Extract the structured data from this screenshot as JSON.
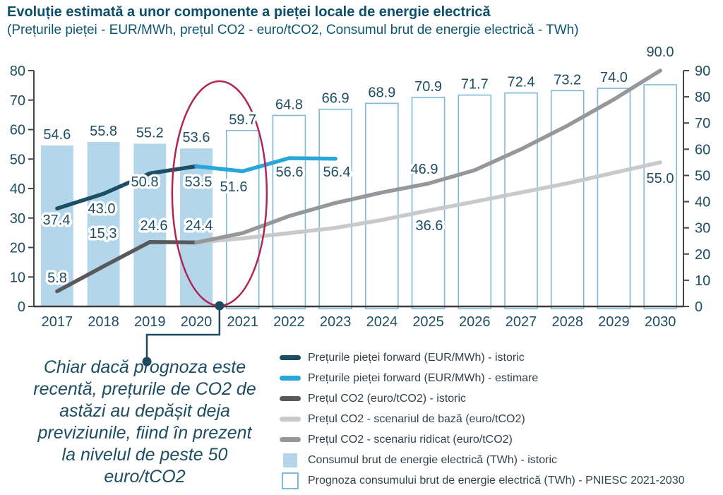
{
  "header": {
    "title": "Evoluție estimată a unor componente a pieței locale de energie electrică",
    "subtitle": "(Prețurile pieței - EUR/MWh, prețul CO2 - euro/tCO2, Consumul brut de energie electrică - TWh)"
  },
  "colors": {
    "navy": "#1b4d64",
    "bright_blue": "#29a7db",
    "dark_gray": "#58595b",
    "light_gray": "#c8c9cb",
    "mid_gray": "#96979a",
    "bar_fill_historic": "#b3d6ea",
    "bar_stroke_forecast": "#7fb9d8",
    "axis": "#45464a",
    "x_axis": "#3c3c3e",
    "text_teal": "#1e4e63",
    "ellipse_red": "#b02552",
    "connector": "#1d4a5f"
  },
  "chart_data": {
    "type": "bar+line combo",
    "categories": [
      "2017",
      "2018",
      "2019",
      "2020",
      "2021",
      "2022",
      "2023",
      "2024",
      "2025",
      "2026",
      "2027",
      "2028",
      "2029",
      "2030"
    ],
    "left_axis": {
      "min": 0,
      "max": 80,
      "step": 10
    },
    "right_axis": {
      "min": 0,
      "max": 90,
      "step": 10
    },
    "grid": false,
    "legend_position": "bottom-right",
    "bars": {
      "axis": "left",
      "historic_count": 4,
      "values": [
        54.6,
        55.8,
        55.2,
        53.6,
        59.7,
        64.8,
        66.9,
        68.9,
        70.9,
        71.7,
        72.4,
        73.2,
        74.0,
        75.2
      ],
      "value_labels": [
        "54.6",
        "55.8",
        "55.2",
        "53.6",
        "59.7",
        "64.8",
        "66.9",
        "68.9",
        "70.9",
        "71.7",
        "72.4",
        "73.2",
        "74.0",
        ""
      ]
    },
    "lines": [
      {
        "name": "Prețurile pieței forward (EUR/MWh) - istoric",
        "color_key": "navy",
        "width": 5.5,
        "axis": "right",
        "points": [
          {
            "year": "2017",
            "value": 37.4,
            "label": "37.4",
            "label_xy": [
              80,
              318
            ]
          },
          {
            "year": "2018",
            "value": 43.0,
            "label": "43.0",
            "label_xy": [
              144,
              302
            ]
          },
          {
            "year": "2019",
            "value": 50.8,
            "label": "50.8",
            "label_xy": [
              205,
              264
            ]
          },
          {
            "year": "2020",
            "value": 53.5,
            "label": "53.5",
            "label_xy": [
              281,
              264
            ]
          }
        ]
      },
      {
        "name": "Prețurile pieței forward (EUR/MWh) - estimare",
        "color_key": "bright_blue",
        "width": 5.5,
        "axis": "right",
        "points": [
          {
            "year": "2020",
            "value": 53.5
          },
          {
            "year": "2021",
            "value": 51.6,
            "label": "51.6",
            "label_xy": [
              331,
              271
            ]
          },
          {
            "year": "2022",
            "value": 56.6,
            "label": "56.6",
            "label_xy": [
              410,
              250
            ]
          },
          {
            "year": "2023",
            "value": 56.4,
            "label": "56.4",
            "label_xy": [
              477,
              250
            ]
          }
        ]
      },
      {
        "name": "Prețul CO2 (euro/tCO2) - istoric",
        "color_key": "dark_gray",
        "width": 5.5,
        "axis": "right",
        "points": [
          {
            "year": "2017",
            "value": 5.8,
            "label": "5.8",
            "label_xy": [
              81,
              400
            ]
          },
          {
            "year": "2018",
            "value": 15.3,
            "label": "15,3",
            "label_xy": [
              146,
              337
            ]
          },
          {
            "year": "2019",
            "value": 24.6,
            "label": "24.6",
            "label_xy": [
              218,
              326
            ]
          },
          {
            "year": "2020",
            "value": 24.4,
            "label": "24.4",
            "label_xy": [
              282,
              326
            ]
          }
        ]
      },
      {
        "name": "Prețul CO2 - scenariul de bază (euro/tCO2)",
        "color_key": "light_gray",
        "width": 5.5,
        "axis": "right",
        "points": [
          {
            "year": "2020",
            "value": 24.4
          },
          {
            "year": "2021",
            "value": 26.0
          },
          {
            "year": "2022",
            "value": 28.0
          },
          {
            "year": "2023",
            "value": 30.0
          },
          {
            "year": "2024",
            "value": 33.0
          },
          {
            "year": "2025",
            "value": 36.6,
            "label": "36.6",
            "label_xy": [
              608,
              326
            ]
          },
          {
            "year": "2026",
            "value": 40.0
          },
          {
            "year": "2027",
            "value": 43.5
          },
          {
            "year": "2028",
            "value": 47.0
          },
          {
            "year": "2029",
            "value": 51.0
          },
          {
            "year": "2030",
            "value": 55.0,
            "label": "55.0",
            "label_xy": [
              935,
              259
            ]
          }
        ]
      },
      {
        "name": "Prețul CO2 - scenariu ridicat (euro/tCO2)",
        "color_key": "mid_gray",
        "width": 5.5,
        "axis": "right",
        "points": [
          {
            "year": "2020",
            "value": 24.4
          },
          {
            "year": "2021",
            "value": 28.0
          },
          {
            "year": "2022",
            "value": 34.5
          },
          {
            "year": "2023",
            "value": 39.5
          },
          {
            "year": "2024",
            "value": 43.5
          },
          {
            "year": "2025",
            "value": 46.9,
            "label": "46.9",
            "label_xy": [
              601,
              246
            ]
          },
          {
            "year": "2026",
            "value": 52.0
          },
          {
            "year": "2027",
            "value": 60.0
          },
          {
            "year": "2028",
            "value": 69.0
          },
          {
            "year": "2029",
            "value": 79.0
          },
          {
            "year": "2030",
            "value": 90.0,
            "label": "90.0",
            "label_xy": [
              935,
              80
            ]
          }
        ]
      }
    ]
  },
  "legend": {
    "items": [
      {
        "swatch": "line",
        "color_key": "navy",
        "label": "Prețurile pieței forward (EUR/MWh) - istoric"
      },
      {
        "swatch": "line",
        "color_key": "bright_blue",
        "label": "Prețurile pieței forward (EUR/MWh) - estimare"
      },
      {
        "swatch": "line",
        "color_key": "dark_gray",
        "label": "Prețul CO2 (euro/tCO2) - istoric"
      },
      {
        "swatch": "line",
        "color_key": "light_gray",
        "label": "Prețul CO2 - scenariul de bază (euro/tCO2)"
      },
      {
        "swatch": "line",
        "color_key": "mid_gray",
        "label": "Prețul CO2 - scenariu ridicat (euro/tCO2)"
      },
      {
        "swatch": "square",
        "color_key": "bar_fill_historic",
        "label": "Consumul brut de energie electrică (TWh) - istoric"
      },
      {
        "swatch": "square-outline",
        "color_key": "bar_stroke_forecast",
        "label": "Prognoza consumului brut de energie electrică (TWh) - PNIESC 2021-2030"
      }
    ]
  },
  "annotation": {
    "text": "Chiar dacă prognoza este\nrecentă, prețurile de CO2 de\nastăzi au depășit deja\npreviziunile, fiind în prezent\nla nivelul de peste 50\neuro/tCO2"
  }
}
